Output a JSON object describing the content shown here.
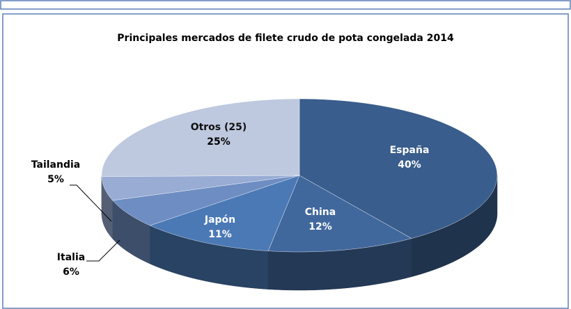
{
  "chart_data": {
    "type": "pie3d",
    "title": "Principales mercados de  filete crudo de pota congelada 2014",
    "categories": [
      "España",
      "China",
      "Japón",
      "Italia",
      "Tailandia",
      "Otros (25)"
    ],
    "values": [
      40,
      12,
      11,
      6,
      5,
      25
    ],
    "value_labels": [
      "40%",
      "12%",
      "11%",
      "6%",
      "5%",
      "25%"
    ],
    "colors": [
      "#395d8c",
      "#41689d",
      "#4b79b5",
      "#6e8dc2",
      "#98acd4",
      "#bec9df"
    ]
  }
}
